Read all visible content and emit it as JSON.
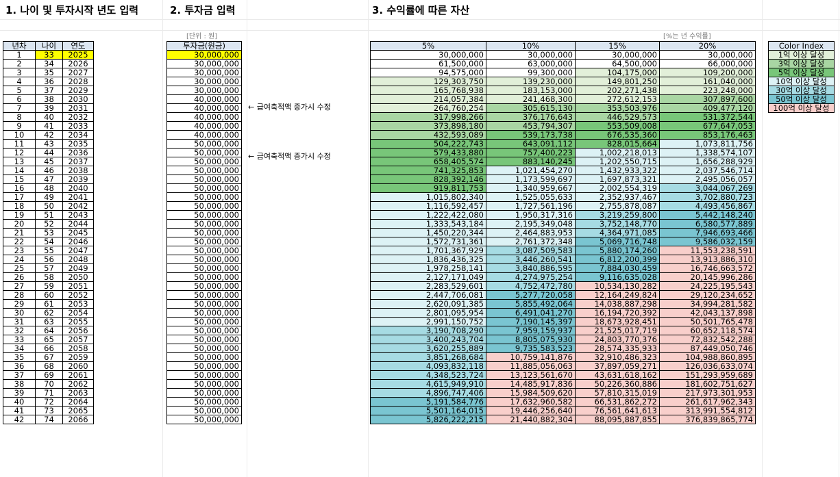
{
  "titles": {
    "t1": "1. 나이 및 투자시작 년도 입력",
    "t2": "2. 투자금 입력",
    "t3": "3. 수익률에 따른 자산"
  },
  "units": {
    "principal": "[단위 : 원]",
    "rate": "[%는 년 수익률]"
  },
  "table1": {
    "headers": [
      "년차",
      "나이",
      "연도"
    ]
  },
  "table2": {
    "header": "투자금(원금)"
  },
  "table3": {
    "headers": [
      "5%",
      "10%",
      "15%",
      "20%"
    ]
  },
  "notes": [
    "← 급여축적액 증가시 수정",
    "← 급여축적액 증가시 수정"
  ],
  "color_index": {
    "title": "Color Index",
    "items": [
      {
        "label": "1억 이상 달성",
        "color": "#e2f0d9"
      },
      {
        "label": "3억 이상 달성",
        "color": "#a9d6a3"
      },
      {
        "label": "5억 이상 달성",
        "color": "#78c679"
      },
      {
        "label": "10억 이상 달성",
        "color": "#ddf2f5"
      },
      {
        "label": "30억 이상 달성",
        "color": "#a6dbe3"
      },
      {
        "label": "50억 이상 달성",
        "color": "#7ac5d1"
      },
      {
        "label": "100억 이상 달성",
        "color": "#f8cfcb"
      }
    ]
  },
  "rows": [
    {
      "n": "1",
      "age": "33",
      "year": "2025",
      "p": "30,000,000",
      "v": [
        "30,000,000",
        "30,000,000",
        "30,000,000",
        "30,000,000"
      ]
    },
    {
      "n": "2",
      "age": "34",
      "year": "2026",
      "p": "30,000,000",
      "v": [
        "61,500,000",
        "63,000,000",
        "64,500,000",
        "66,000,000"
      ]
    },
    {
      "n": "3",
      "age": "35",
      "year": "2027",
      "p": "30,000,000",
      "v": [
        "94,575,000",
        "99,300,000",
        "104,175,000",
        "109,200,000"
      ]
    },
    {
      "n": "4",
      "age": "36",
      "year": "2028",
      "p": "30,000,000",
      "v": [
        "129,303,750",
        "139,230,000",
        "149,801,250",
        "161,040,000"
      ]
    },
    {
      "n": "5",
      "age": "37",
      "year": "2029",
      "p": "30,000,000",
      "v": [
        "165,768,938",
        "183,153,000",
        "202,271,438",
        "223,248,000"
      ]
    },
    {
      "n": "6",
      "age": "38",
      "year": "2030",
      "p": "40,000,000",
      "v": [
        "214,057,384",
        "241,468,300",
        "272,612,153",
        "307,897,600"
      ]
    },
    {
      "n": "7",
      "age": "39",
      "year": "2031",
      "p": "40,000,000",
      "v": [
        "264,760,254",
        "305,615,130",
        "353,503,976",
        "409,477,120"
      ]
    },
    {
      "n": "8",
      "age": "40",
      "year": "2032",
      "p": "40,000,000",
      "v": [
        "317,998,266",
        "376,176,643",
        "446,529,573",
        "531,372,544"
      ]
    },
    {
      "n": "9",
      "age": "41",
      "year": "2033",
      "p": "40,000,000",
      "v": [
        "373,898,180",
        "453,794,307",
        "553,509,008",
        "677,647,053"
      ]
    },
    {
      "n": "10",
      "age": "42",
      "year": "2034",
      "p": "40,000,000",
      "v": [
        "432,593,089",
        "539,173,738",
        "676,535,360",
        "853,176,463"
      ]
    },
    {
      "n": "11",
      "age": "43",
      "year": "2035",
      "p": "50,000,000",
      "v": [
        "504,222,743",
        "643,091,112",
        "828,015,664",
        "1,073,811,756"
      ]
    },
    {
      "n": "12",
      "age": "44",
      "year": "2036",
      "p": "50,000,000",
      "v": [
        "579,433,880",
        "757,400,223",
        "1,002,218,013",
        "1,338,574,107"
      ]
    },
    {
      "n": "13",
      "age": "45",
      "year": "2037",
      "p": "50,000,000",
      "v": [
        "658,405,574",
        "883,140,245",
        "1,202,550,715",
        "1,656,288,929"
      ]
    },
    {
      "n": "14",
      "age": "46",
      "year": "2038",
      "p": "50,000,000",
      "v": [
        "741,325,853",
        "1,021,454,270",
        "1,432,933,322",
        "2,037,546,714"
      ]
    },
    {
      "n": "15",
      "age": "47",
      "year": "2039",
      "p": "50,000,000",
      "v": [
        "828,392,146",
        "1,173,599,697",
        "1,697,873,321",
        "2,495,056,057"
      ]
    },
    {
      "n": "16",
      "age": "48",
      "year": "2040",
      "p": "50,000,000",
      "v": [
        "919,811,753",
        "1,340,959,667",
        "2,002,554,319",
        "3,044,067,269"
      ]
    },
    {
      "n": "17",
      "age": "49",
      "year": "2041",
      "p": "50,000,000",
      "v": [
        "1,015,802,340",
        "1,525,055,633",
        "2,352,937,467",
        "3,702,880,723"
      ]
    },
    {
      "n": "18",
      "age": "50",
      "year": "2042",
      "p": "50,000,000",
      "v": [
        "1,116,592,457",
        "1,727,561,196",
        "2,755,878,087",
        "4,493,456,867"
      ]
    },
    {
      "n": "19",
      "age": "51",
      "year": "2043",
      "p": "50,000,000",
      "v": [
        "1,222,422,080",
        "1,950,317,316",
        "3,219,259,800",
        "5,442,148,240"
      ]
    },
    {
      "n": "20",
      "age": "52",
      "year": "2044",
      "p": "50,000,000",
      "v": [
        "1,333,543,184",
        "2,195,349,048",
        "3,752,148,770",
        "6,580,577,889"
      ]
    },
    {
      "n": "21",
      "age": "53",
      "year": "2045",
      "p": "50,000,000",
      "v": [
        "1,450,220,344",
        "2,464,883,953",
        "4,364,971,085",
        "7,946,693,466"
      ]
    },
    {
      "n": "22",
      "age": "54",
      "year": "2046",
      "p": "50,000,000",
      "v": [
        "1,572,731,361",
        "2,761,372,348",
        "5,069,716,748",
        "9,586,032,159"
      ]
    },
    {
      "n": "23",
      "age": "55",
      "year": "2047",
      "p": "50,000,000",
      "v": [
        "1,701,367,929",
        "3,087,509,583",
        "5,880,174,260",
        "11,553,238,591"
      ]
    },
    {
      "n": "24",
      "age": "56",
      "year": "2048",
      "p": "50,000,000",
      "v": [
        "1,836,436,325",
        "3,446,260,541",
        "6,812,200,399",
        "13,913,886,310"
      ]
    },
    {
      "n": "25",
      "age": "57",
      "year": "2049",
      "p": "50,000,000",
      "v": [
        "1,978,258,141",
        "3,840,886,595",
        "7,884,030,459",
        "16,746,663,572"
      ]
    },
    {
      "n": "26",
      "age": "58",
      "year": "2050",
      "p": "50,000,000",
      "v": [
        "2,127,171,049",
        "4,274,975,254",
        "9,116,635,028",
        "20,145,996,286"
      ]
    },
    {
      "n": "27",
      "age": "59",
      "year": "2051",
      "p": "50,000,000",
      "v": [
        "2,283,529,601",
        "4,752,472,780",
        "10,534,130,282",
        "24,225,195,543"
      ]
    },
    {
      "n": "28",
      "age": "60",
      "year": "2052",
      "p": "50,000,000",
      "v": [
        "2,447,706,081",
        "5,277,720,058",
        "12,164,249,824",
        "29,120,234,652"
      ]
    },
    {
      "n": "29",
      "age": "61",
      "year": "2053",
      "p": "50,000,000",
      "v": [
        "2,620,091,385",
        "5,855,492,064",
        "14,038,887,298",
        "34,994,281,582"
      ]
    },
    {
      "n": "30",
      "age": "62",
      "year": "2054",
      "p": "50,000,000",
      "v": [
        "2,801,095,954",
        "6,491,041,270",
        "16,194,720,392",
        "42,043,137,898"
      ]
    },
    {
      "n": "31",
      "age": "63",
      "year": "2055",
      "p": "50,000,000",
      "v": [
        "2,991,150,752",
        "7,190,145,397",
        "18,673,928,451",
        "50,501,765,478"
      ]
    },
    {
      "n": "32",
      "age": "64",
      "year": "2056",
      "p": "50,000,000",
      "v": [
        "3,190,708,290",
        "7,959,159,937",
        "21,525,017,719",
        "60,652,118,574"
      ]
    },
    {
      "n": "33",
      "age": "65",
      "year": "2057",
      "p": "50,000,000",
      "v": [
        "3,400,243,704",
        "8,805,075,930",
        "24,803,770,376",
        "72,832,542,288"
      ]
    },
    {
      "n": "34",
      "age": "66",
      "year": "2058",
      "p": "50,000,000",
      "v": [
        "3,620,255,889",
        "9,735,583,523",
        "28,574,335,933",
        "87,449,050,746"
      ]
    },
    {
      "n": "35",
      "age": "67",
      "year": "2059",
      "p": "50,000,000",
      "v": [
        "3,851,268,684",
        "10,759,141,876",
        "32,910,486,323",
        "104,988,860,895"
      ]
    },
    {
      "n": "36",
      "age": "68",
      "year": "2060",
      "p": "50,000,000",
      "v": [
        "4,093,832,118",
        "11,885,056,063",
        "37,897,059,271",
        "126,036,633,074"
      ]
    },
    {
      "n": "37",
      "age": "69",
      "year": "2061",
      "p": "50,000,000",
      "v": [
        "4,348,523,724",
        "13,123,561,670",
        "43,631,618,162",
        "151,293,959,689"
      ]
    },
    {
      "n": "38",
      "age": "70",
      "year": "2062",
      "p": "50,000,000",
      "v": [
        "4,615,949,910",
        "14,485,917,836",
        "50,226,360,886",
        "181,602,751,627"
      ]
    },
    {
      "n": "39",
      "age": "71",
      "year": "2063",
      "p": "50,000,000",
      "v": [
        "4,896,747,406",
        "15,984,509,620",
        "57,810,315,019",
        "217,973,301,953"
      ]
    },
    {
      "n": "40",
      "age": "72",
      "year": "2064",
      "p": "50,000,000",
      "v": [
        "5,191,584,776",
        "17,632,960,582",
        "66,531,862,272",
        "261,617,962,343"
      ]
    },
    {
      "n": "41",
      "age": "73",
      "year": "2065",
      "p": "50,000,000",
      "v": [
        "5,501,164,015",
        "19,446,256,640",
        "76,561,641,613",
        "313,991,554,812"
      ]
    },
    {
      "n": "42",
      "age": "74",
      "year": "2066",
      "p": "50,000,000",
      "v": [
        "5,826,222,215",
        "21,440,882,304",
        "88,095,887,855",
        "376,839,865,774"
      ]
    }
  ]
}
